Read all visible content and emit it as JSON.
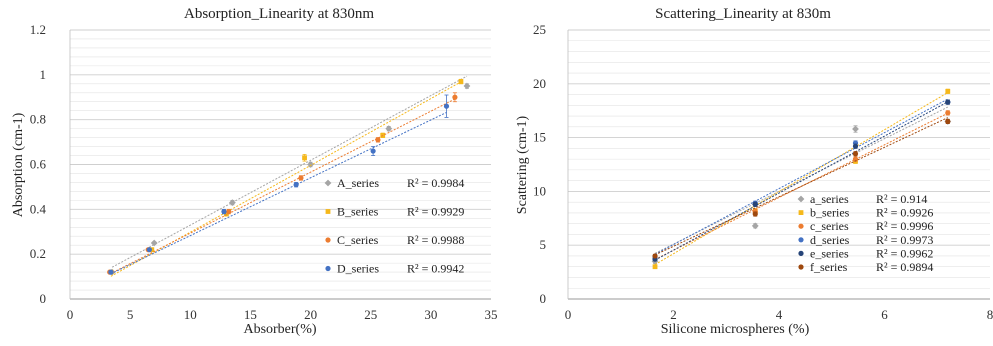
{
  "chart_data": [
    {
      "type": "scatter",
      "title": "Absorption_Linearity at 830nm",
      "xlabel": "Absorber(%)",
      "ylabel": "Absorption (cm-1)",
      "xlim": [
        0,
        35
      ],
      "ylim": [
        0,
        1.2
      ],
      "xticks": [
        0,
        5,
        10,
        15,
        20,
        25,
        30,
        35
      ],
      "yticks": [
        0,
        0.2,
        0.4,
        0.6,
        0.8,
        1,
        1.2
      ],
      "xtick_labels": [
        "0",
        "5",
        "10",
        "15",
        "20",
        "25",
        "30",
        "35"
      ],
      "ytick_labels": [
        "0",
        "0.2",
        "0.4",
        "0.6",
        "0.8",
        "1",
        "1.2"
      ],
      "grid": true,
      "legend_position": "right",
      "series": [
        {
          "name": "A_series",
          "r2_label": "R² = 0.9984",
          "color": "#a5a5a5",
          "x": [
            3.5,
            7.0,
            13.5,
            20.0,
            26.5,
            33.0
          ],
          "y": [
            0.12,
            0.25,
            0.43,
            0.6,
            0.76,
            0.95
          ],
          "err": [
            0.005,
            0.005,
            0.01,
            0.01,
            0.01,
            0.01
          ],
          "fit": [
            0.0405,
            0.0289
          ]
        },
        {
          "name": "B_series",
          "r2_label": "R² = 0.9929",
          "color": "#f5b81a",
          "x": [
            3.4,
            6.8,
            13.0,
            19.5,
            26.0,
            32.5
          ],
          "y": [
            0.12,
            0.22,
            0.38,
            0.63,
            0.73,
            0.97
          ],
          "err": [
            0.005,
            0.005,
            0.01,
            0.015,
            0.01,
            0.01
          ],
          "fit": [
            0.0,
            0.0298
          ]
        },
        {
          "name": "C_series",
          "r2_label": "R² = 0.9988",
          "color": "#ec7c30",
          "x": [
            3.3,
            6.5,
            13.2,
            19.2,
            25.6,
            32.0
          ],
          "y": [
            0.12,
            0.22,
            0.39,
            0.54,
            0.71,
            0.9
          ],
          "err": [
            0.005,
            0.005,
            0.01,
            0.01,
            0.01,
            0.02
          ],
          "fit": [
            0.0217,
            0.0272
          ]
        },
        {
          "name": "D_series",
          "r2_label": "R² = 0.9942",
          "color": "#4472c4",
          "x": [
            3.4,
            6.6,
            12.8,
            18.8,
            25.2,
            31.3
          ],
          "y": [
            0.12,
            0.22,
            0.39,
            0.51,
            0.66,
            0.86
          ],
          "err": [
            0.005,
            0.005,
            0.01,
            0.01,
            0.02,
            0.05
          ],
          "fit": [
            0.0247,
            0.0258
          ]
        }
      ]
    },
    {
      "type": "scatter",
      "title": "Scattering_Linearity at 830m",
      "xlabel": "Silicone microspheres (%)",
      "ylabel": "Scattering (cm-1)",
      "xlim": [
        0,
        8
      ],
      "ylim": [
        0,
        25
      ],
      "xticks": [
        0,
        2,
        4,
        6,
        8
      ],
      "yticks": [
        0,
        5,
        10,
        15,
        20,
        25
      ],
      "xtick_labels": [
        "0",
        "2",
        "4",
        "6",
        "8"
      ],
      "ytick_labels": [
        "0",
        "5",
        "10",
        "15",
        "20",
        "25"
      ],
      "grid": true,
      "legend_position": "bottom-right",
      "series": [
        {
          "name": "a_series",
          "r2_label": "R² = 0.914",
          "color": "#a5a5a5",
          "x": [
            1.65,
            3.55,
            5.45,
            7.2
          ],
          "y": [
            3.5,
            6.8,
            15.8,
            16.5
          ],
          "err": [
            0.2,
            0.2,
            0.3,
            0.2
          ],
          "fit": [
            0.2,
            2.45
          ]
        },
        {
          "name": "b_series",
          "r2_label": "R² = 0.9926",
          "color": "#f5b81a",
          "x": [
            1.65,
            3.55,
            5.45,
            7.2
          ],
          "y": [
            3.0,
            8.2,
            12.8,
            19.3
          ],
          "err": [
            0.15,
            0.2,
            0.2,
            0.2
          ],
          "fit": [
            -1.55,
            2.88
          ]
        },
        {
          "name": "c_series",
          "r2_label": "R² = 0.9996",
          "color": "#ec7c30",
          "x": [
            1.65,
            3.55,
            5.45,
            7.2
          ],
          "y": [
            3.8,
            8.1,
            13.0,
            17.3
          ],
          "err": [
            0.15,
            0.2,
            0.2,
            0.2
          ],
          "fit": [
            -0.37,
            2.45
          ]
        },
        {
          "name": "d_series",
          "r2_label": "R² = 0.9973",
          "color": "#4472c4",
          "x": [
            1.65,
            3.55,
            5.45,
            7.2
          ],
          "y": [
            3.9,
            8.9,
            14.5,
            18.3
          ],
          "err": [
            0.15,
            0.2,
            0.2,
            0.2
          ],
          "fit": [
            -0.14,
            2.6
          ]
        },
        {
          "name": "e_series",
          "r2_label": "R² = 0.9962",
          "color": "#264478",
          "x": [
            1.65,
            3.55,
            5.45,
            7.2
          ],
          "y": [
            3.7,
            8.8,
            14.2,
            18.3
          ],
          "err": [
            0.15,
            0.2,
            0.2,
            0.2
          ],
          "fit": [
            -0.76,
            2.65
          ]
        },
        {
          "name": "f_series",
          "r2_label": "R² = 0.9894",
          "color": "#9e480e",
          "x": [
            1.65,
            3.55,
            5.45,
            7.2
          ],
          "y": [
            4.0,
            7.9,
            13.5,
            16.5
          ],
          "err": [
            0.15,
            0.2,
            0.2,
            0.2
          ],
          "fit": [
            0.3,
            2.3
          ]
        }
      ]
    }
  ]
}
